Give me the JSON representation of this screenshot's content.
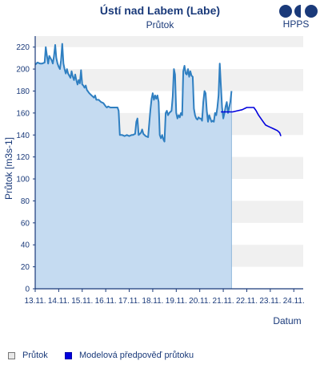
{
  "header": {
    "title": "Ústí nad Labem (Labe)",
    "subtitle": "Průtok",
    "logo_text": "HPPS"
  },
  "legend": {
    "observed_label": "Průtok",
    "model_label": "Modelová předpověď průtoku"
  },
  "colors": {
    "observed_line": "#2f7fc1",
    "observed_fill": "#c2d9f0",
    "model_line": "#0000dd",
    "band": "#f0f0f0",
    "axis": "#1a3a7a"
  },
  "chart_data": {
    "type": "line",
    "title": "Ústí nad Labem (Labe)",
    "subtitle": "Průtok",
    "xlabel": "Datum",
    "ylabel": "Průtok [m3s-1]",
    "ylim": [
      0,
      230
    ],
    "yticks": [
      0,
      20,
      40,
      60,
      80,
      100,
      120,
      140,
      160,
      180,
      200,
      220
    ],
    "xlim": [
      13,
      24.4
    ],
    "x_tick_labels": [
      "13.11.",
      "14.11.",
      "15.11.",
      "16.11.",
      "17.11.",
      "18.11.",
      "19.11.",
      "20.11.",
      "21.11.",
      "22.11.",
      "23.11.",
      "24.11."
    ],
    "x_tick_values": [
      13,
      14,
      15,
      16,
      17,
      18,
      19,
      20,
      21,
      22,
      23,
      24
    ],
    "grid": "alternating horizontal bands",
    "legend_position": "bottom",
    "series": [
      {
        "name": "Průtok",
        "type": "area",
        "points": [
          [
            13.0,
            204
          ],
          [
            13.1,
            206
          ],
          [
            13.2,
            205
          ],
          [
            13.3,
            205
          ],
          [
            13.4,
            206
          ],
          [
            13.45,
            220
          ],
          [
            13.5,
            212
          ],
          [
            13.55,
            205
          ],
          [
            13.6,
            212
          ],
          [
            13.7,
            208
          ],
          [
            13.75,
            205
          ],
          [
            13.8,
            212
          ],
          [
            13.85,
            222
          ],
          [
            13.9,
            210
          ],
          [
            13.95,
            205
          ],
          [
            14.0,
            202
          ],
          [
            14.05,
            200
          ],
          [
            14.1,
            208
          ],
          [
            14.15,
            223
          ],
          [
            14.2,
            205
          ],
          [
            14.25,
            200
          ],
          [
            14.3,
            196
          ],
          [
            14.35,
            200
          ],
          [
            14.4,
            196
          ],
          [
            14.5,
            192
          ],
          [
            14.55,
            198
          ],
          [
            14.6,
            193
          ],
          [
            14.65,
            190
          ],
          [
            14.7,
            195
          ],
          [
            14.75,
            190
          ],
          [
            14.8,
            186
          ],
          [
            14.85,
            190
          ],
          [
            14.9,
            187
          ],
          [
            14.95,
            199
          ],
          [
            15.0,
            186
          ],
          [
            15.05,
            185
          ],
          [
            15.1,
            183
          ],
          [
            15.15,
            185
          ],
          [
            15.2,
            181
          ],
          [
            15.3,
            178
          ],
          [
            15.4,
            176
          ],
          [
            15.5,
            174
          ],
          [
            15.55,
            176
          ],
          [
            15.6,
            172
          ],
          [
            15.7,
            172
          ],
          [
            15.8,
            170
          ],
          [
            15.9,
            169
          ],
          [
            16.0,
            166
          ],
          [
            16.05,
            165
          ],
          [
            16.1,
            166
          ],
          [
            16.2,
            165
          ],
          [
            16.3,
            165
          ],
          [
            16.4,
            165
          ],
          [
            16.5,
            165
          ],
          [
            16.55,
            162
          ],
          [
            16.6,
            140
          ],
          [
            16.65,
            140
          ],
          [
            16.7,
            140
          ],
          [
            16.8,
            139
          ],
          [
            16.9,
            140
          ],
          [
            17.0,
            139
          ],
          [
            17.1,
            140
          ],
          [
            17.15,
            140
          ],
          [
            17.25,
            141
          ],
          [
            17.3,
            152
          ],
          [
            17.35,
            155
          ],
          [
            17.4,
            140
          ],
          [
            17.45,
            141
          ],
          [
            17.5,
            142
          ],
          [
            17.55,
            145
          ],
          [
            17.6,
            141
          ],
          [
            17.7,
            139
          ],
          [
            17.8,
            138
          ],
          [
            17.85,
            150
          ],
          [
            17.9,
            163
          ],
          [
            17.95,
            173
          ],
          [
            18.0,
            178
          ],
          [
            18.05,
            172
          ],
          [
            18.1,
            176
          ],
          [
            18.15,
            173
          ],
          [
            18.2,
            176
          ],
          [
            18.25,
            170
          ],
          [
            18.3,
            140
          ],
          [
            18.35,
            137
          ],
          [
            18.4,
            140
          ],
          [
            18.45,
            136
          ],
          [
            18.5,
            134
          ],
          [
            18.55,
            160
          ],
          [
            18.6,
            162
          ],
          [
            18.65,
            158
          ],
          [
            18.7,
            160
          ],
          [
            18.8,
            162
          ],
          [
            18.85,
            175
          ],
          [
            18.9,
            200
          ],
          [
            18.95,
            195
          ],
          [
            19.0,
            160
          ],
          [
            19.05,
            155
          ],
          [
            19.1,
            158
          ],
          [
            19.15,
            156
          ],
          [
            19.2,
            160
          ],
          [
            19.25,
            158
          ],
          [
            19.3,
            198
          ],
          [
            19.35,
            203
          ],
          [
            19.4,
            196
          ],
          [
            19.45,
            195
          ],
          [
            19.5,
            200
          ],
          [
            19.55,
            193
          ],
          [
            19.6,
            198
          ],
          [
            19.65,
            194
          ],
          [
            19.7,
            193
          ],
          [
            19.75,
            164
          ],
          [
            19.8,
            158
          ],
          [
            19.85,
            155
          ],
          [
            19.9,
            154
          ],
          [
            19.95,
            156
          ],
          [
            20.0,
            155
          ],
          [
            20.05,
            155
          ],
          [
            20.1,
            153
          ],
          [
            20.15,
            170
          ],
          [
            20.2,
            180
          ],
          [
            20.25,
            178
          ],
          [
            20.3,
            162
          ],
          [
            20.35,
            152
          ],
          [
            20.4,
            158
          ],
          [
            20.5,
            152
          ],
          [
            20.55,
            153
          ],
          [
            20.6,
            152
          ],
          [
            20.65,
            160
          ],
          [
            20.7,
            158
          ],
          [
            20.75,
            165
          ],
          [
            20.8,
            176
          ],
          [
            20.85,
            205
          ],
          [
            20.9,
            185
          ],
          [
            20.95,
            165
          ],
          [
            21.0,
            155
          ],
          [
            21.05,
            160
          ],
          [
            21.1,
            166
          ],
          [
            21.15,
            170
          ],
          [
            21.2,
            160
          ],
          [
            21.25,
            165
          ],
          [
            21.3,
            170
          ],
          [
            21.35,
            180
          ]
        ]
      },
      {
        "name": "Modelová předpověď průtoku",
        "type": "line",
        "points": [
          [
            20.9,
            161
          ],
          [
            21.0,
            161
          ],
          [
            21.2,
            161
          ],
          [
            21.4,
            161
          ],
          [
            21.6,
            162
          ],
          [
            21.8,
            163
          ],
          [
            22.0,
            165
          ],
          [
            22.2,
            165
          ],
          [
            22.3,
            165
          ],
          [
            22.4,
            162
          ],
          [
            22.5,
            158
          ],
          [
            22.6,
            155
          ],
          [
            22.7,
            152
          ],
          [
            22.8,
            149
          ],
          [
            22.9,
            148
          ],
          [
            23.0,
            147
          ],
          [
            23.1,
            146
          ],
          [
            23.2,
            145
          ],
          [
            23.3,
            144
          ],
          [
            23.4,
            142
          ],
          [
            23.45,
            139
          ]
        ]
      }
    ]
  }
}
